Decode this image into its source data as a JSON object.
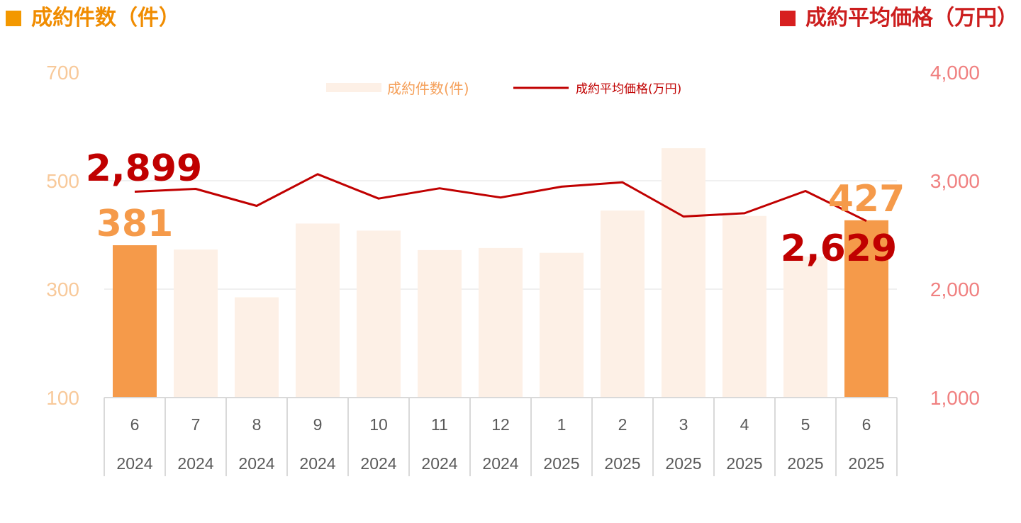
{
  "headers": {
    "left": {
      "label": "成約件数（件）",
      "color": "#f39800"
    },
    "right": {
      "label": "成約平均価格（万円）",
      "color": "#d71f1f"
    }
  },
  "chart_data": {
    "type": "bar+line",
    "categories": [
      {
        "month": "6",
        "year": "2024"
      },
      {
        "month": "7",
        "year": "2024"
      },
      {
        "month": "8",
        "year": "2024"
      },
      {
        "month": "9",
        "year": "2024"
      },
      {
        "month": "10",
        "year": "2024"
      },
      {
        "month": "11",
        "year": "2024"
      },
      {
        "month": "12",
        "year": "2024"
      },
      {
        "month": "1",
        "year": "2025"
      },
      {
        "month": "2",
        "year": "2025"
      },
      {
        "month": "3",
        "year": "2025"
      },
      {
        "month": "4",
        "year": "2025"
      },
      {
        "month": "5",
        "year": "2025"
      },
      {
        "month": "6",
        "year": "2025"
      }
    ],
    "series": [
      {
        "name": "成約件数(件)",
        "type": "bar",
        "axis": "left",
        "values": [
          381,
          373,
          285,
          421,
          408,
          372,
          376,
          367,
          445,
          560,
          435,
          360,
          427
        ],
        "color": "#fdf0e6",
        "highlight_color": "#f59a4a",
        "highlight_indices": [
          0,
          12
        ]
      },
      {
        "name": "成約平均価格(万円)",
        "type": "line",
        "axis": "right",
        "values": [
          2899,
          2925,
          2768,
          3060,
          2835,
          2930,
          2845,
          2945,
          2985,
          2670,
          2700,
          2905,
          2629
        ],
        "color": "#c00000"
      }
    ],
    "left_axis": {
      "min": 100,
      "max": 700,
      "ticks": [
        "100",
        "300",
        "500",
        "700"
      ],
      "color": "#f8c99a"
    },
    "right_axis": {
      "min": 1000,
      "max": 4000,
      "ticks": [
        "1,000",
        "2,000",
        "3,000",
        "4,000"
      ],
      "color": "#f08080"
    },
    "annotations": [
      {
        "text": "2,899",
        "series": 1,
        "index": 0,
        "color": "#c00000"
      },
      {
        "text": "381",
        "series": 0,
        "index": 0,
        "color": "#f59a4a"
      },
      {
        "text": "427",
        "series": 0,
        "index": 12,
        "color": "#f59a4a"
      },
      {
        "text": "2,629",
        "series": 1,
        "index": 12,
        "color": "#c00000"
      }
    ],
    "legend_position": "top-center",
    "grid": true
  }
}
